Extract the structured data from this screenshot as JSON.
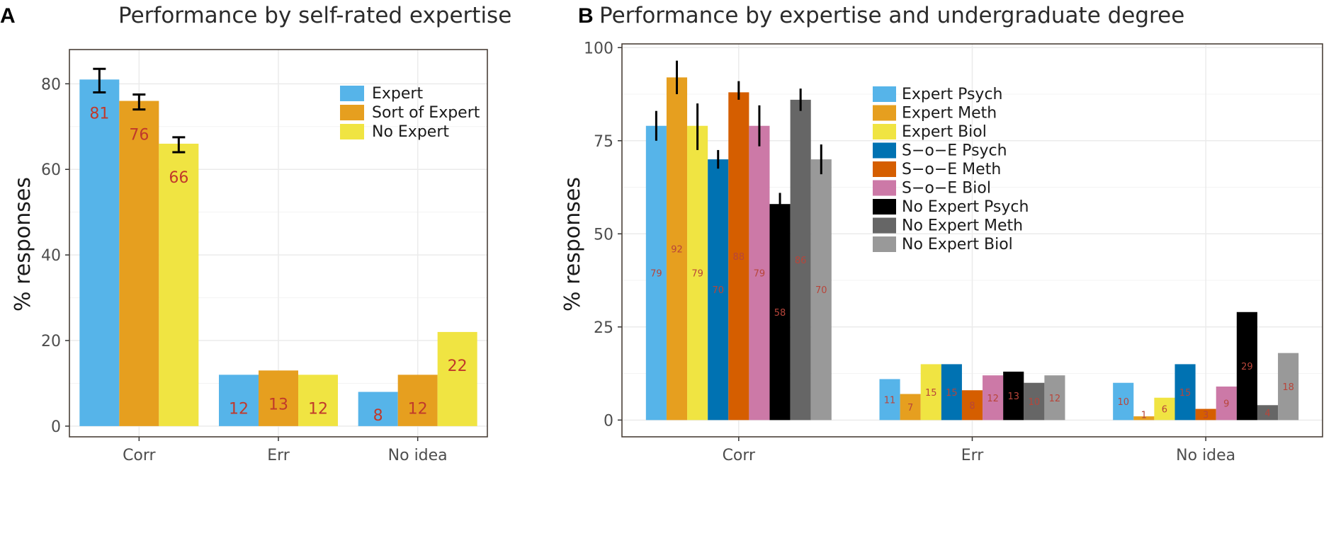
{
  "chart_data": [
    {
      "panel_label": "A",
      "type": "bar",
      "title": "Performance by self-rated expertise",
      "xlabel": "",
      "ylabel": "% responses",
      "categories": [
        "Corr",
        "Err",
        "No idea"
      ],
      "yticks": [
        "0",
        "20",
        "40",
        "60",
        "80"
      ],
      "ylim": [
        -2.5,
        88
      ],
      "legend_position": "top-right",
      "series": [
        {
          "name": "Expert",
          "color": "#56b4e9",
          "values": [
            81,
            12,
            8
          ],
          "labels": [
            "81",
            "12",
            "8"
          ],
          "error": [
            [
              78,
              83.5
            ],
            null,
            null
          ]
        },
        {
          "name": "Sort of Expert",
          "color": "#e69f1f",
          "values": [
            76,
            13,
            12
          ],
          "labels": [
            "76",
            "13",
            "12"
          ],
          "error": [
            [
              74,
              77.5
            ],
            null,
            null
          ]
        },
        {
          "name": "No Expert",
          "color": "#f0e442",
          "values": [
            66,
            12,
            22
          ],
          "labels": [
            "66",
            "12",
            "22"
          ],
          "error": [
            [
              64,
              67.5
            ],
            null,
            null
          ]
        }
      ]
    },
    {
      "panel_label": "B",
      "type": "bar",
      "title": "Performance by expertise and undergraduate degree",
      "xlabel": "",
      "ylabel": "% responses",
      "categories": [
        "Corr",
        "Err",
        "No idea"
      ],
      "yticks": [
        "0",
        "25",
        "50",
        "75",
        "100"
      ],
      "ylim": [
        -4.5,
        101
      ],
      "legend_position": "top-right",
      "series": [
        {
          "name": "Expert Psych",
          "color": "#56b4e9",
          "values": [
            79,
            11,
            10
          ],
          "labels": [
            "79",
            "11",
            "10"
          ],
          "error": [
            [
              75,
              83
            ],
            null,
            null
          ]
        },
        {
          "name": "Expert Meth",
          "color": "#e69f1f",
          "values": [
            92,
            7,
            1
          ],
          "labels": [
            "92",
            "7",
            "1"
          ],
          "error": [
            [
              87.5,
              96.5
            ],
            null,
            null
          ]
        },
        {
          "name": "Expert Biol",
          "color": "#f0e442",
          "values": [
            79,
            15,
            6
          ],
          "labels": [
            "79",
            "15",
            "6"
          ],
          "error": [
            [
              72.5,
              85
            ],
            null,
            null
          ]
        },
        {
          "name": "S−o−E Psych",
          "color": "#0072b2",
          "values": [
            70,
            15,
            15
          ],
          "labels": [
            "70",
            "15",
            "15"
          ],
          "error": [
            [
              67.5,
              72.5
            ],
            null,
            null
          ]
        },
        {
          "name": "S−o−E Meth",
          "color": "#d55e00",
          "values": [
            88,
            8,
            3
          ],
          "labels": [
            "88",
            "8",
            "3"
          ],
          "error": [
            [
              86,
              91
            ],
            null,
            null
          ]
        },
        {
          "name": "S−o−E Biol",
          "color": "#cc79a7",
          "values": [
            79,
            12,
            9
          ],
          "labels": [
            "79",
            "12",
            "9"
          ],
          "error": [
            [
              73.5,
              84.5
            ],
            null,
            null
          ]
        },
        {
          "name": "No Expert Psych",
          "color": "#000000",
          "values": [
            58,
            13,
            29
          ],
          "labels": [
            "58",
            "13",
            "29"
          ],
          "error": [
            [
              55.5,
              61
            ],
            null,
            null
          ]
        },
        {
          "name": "No Expert Meth",
          "color": "#666666",
          "values": [
            86,
            10,
            4
          ],
          "labels": [
            "86",
            "10",
            "4"
          ],
          "error": [
            [
              83,
              89
            ],
            null,
            null
          ]
        },
        {
          "name": "No Expert Biol",
          "color": "#999999",
          "values": [
            70,
            12,
            18
          ],
          "labels": [
            "70",
            "12",
            "18"
          ],
          "error": [
            [
              66,
              74
            ],
            null,
            null
          ]
        }
      ]
    }
  ]
}
